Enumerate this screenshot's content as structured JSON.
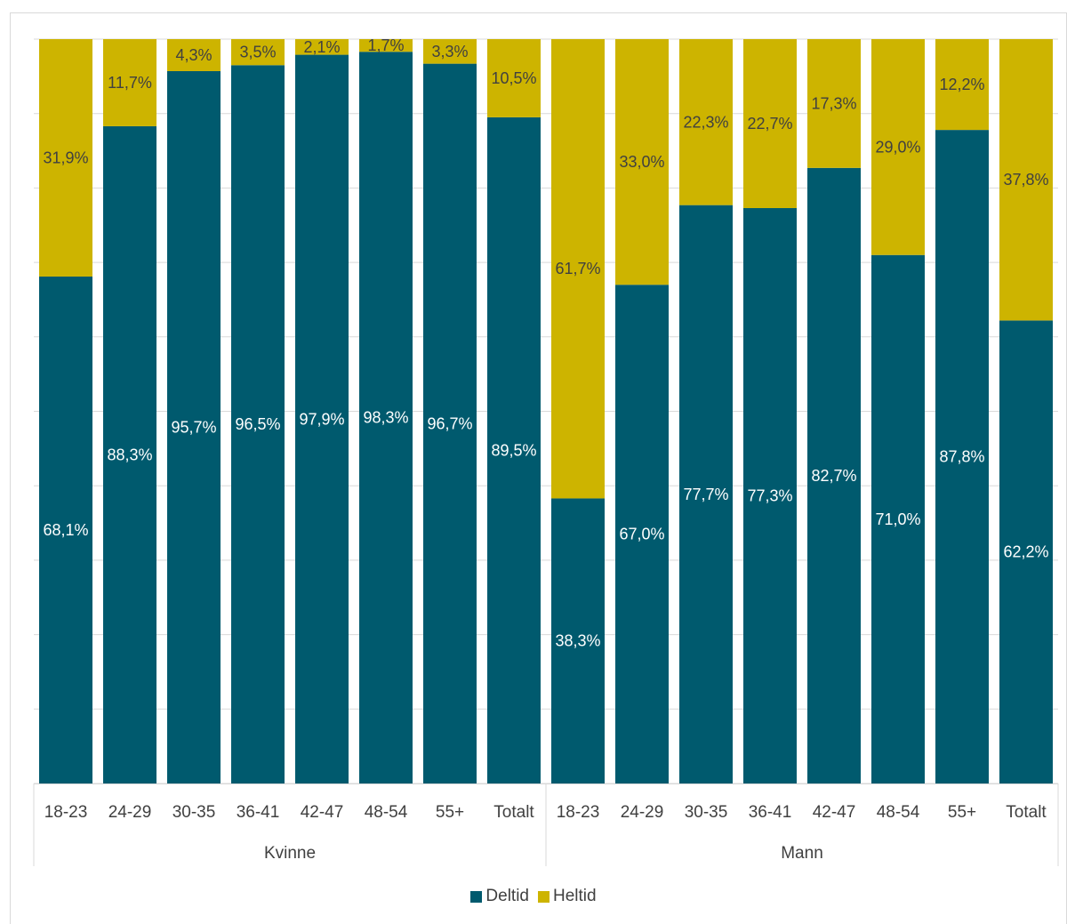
{
  "chart_data": {
    "type": "bar",
    "stacked": true,
    "percent_stacked": true,
    "ylim": [
      0,
      100
    ],
    "grid": true,
    "legend_position": "bottom",
    "groups": [
      {
        "label": "Kvinne",
        "categories": [
          "18-23",
          "24-29",
          "30-35",
          "36-41",
          "42-47",
          "48-54",
          "55+",
          "Totalt"
        ]
      },
      {
        "label": "Mann",
        "categories": [
          "18-23",
          "24-29",
          "30-35",
          "36-41",
          "42-47",
          "48-54",
          "55+",
          "Totalt"
        ]
      }
    ],
    "series": [
      {
        "name": "Deltid",
        "color": "#005a6e",
        "values": [
          68.1,
          88.3,
          95.7,
          96.5,
          97.9,
          98.3,
          96.7,
          89.5,
          38.3,
          67.0,
          77.7,
          77.3,
          82.7,
          71.0,
          87.8,
          62.2
        ],
        "labels": [
          "68,1%",
          "88,3%",
          "95,7%",
          "96,5%",
          "97,9%",
          "98,3%",
          "96,7%",
          "89,5%",
          "38,3%",
          "67,0%",
          "77,7%",
          "77,3%",
          "82,7%",
          "71,0%",
          "87,8%",
          "62,2%"
        ]
      },
      {
        "name": "Heltid",
        "color": "#cdb400",
        "values": [
          31.9,
          11.7,
          4.3,
          3.5,
          2.1,
          1.7,
          3.3,
          10.5,
          61.7,
          33.0,
          22.3,
          22.7,
          17.3,
          29.0,
          12.2,
          37.8
        ],
        "labels": [
          "31,9%",
          "11,7%",
          "4,3%",
          "3,5%",
          "2,1%",
          "1,7%",
          "3,3%",
          "10,5%",
          "61,7%",
          "33,0%",
          "22,3%",
          "22,7%",
          "17,3%",
          "29,0%",
          "12,2%",
          "37,8%"
        ]
      }
    ]
  }
}
